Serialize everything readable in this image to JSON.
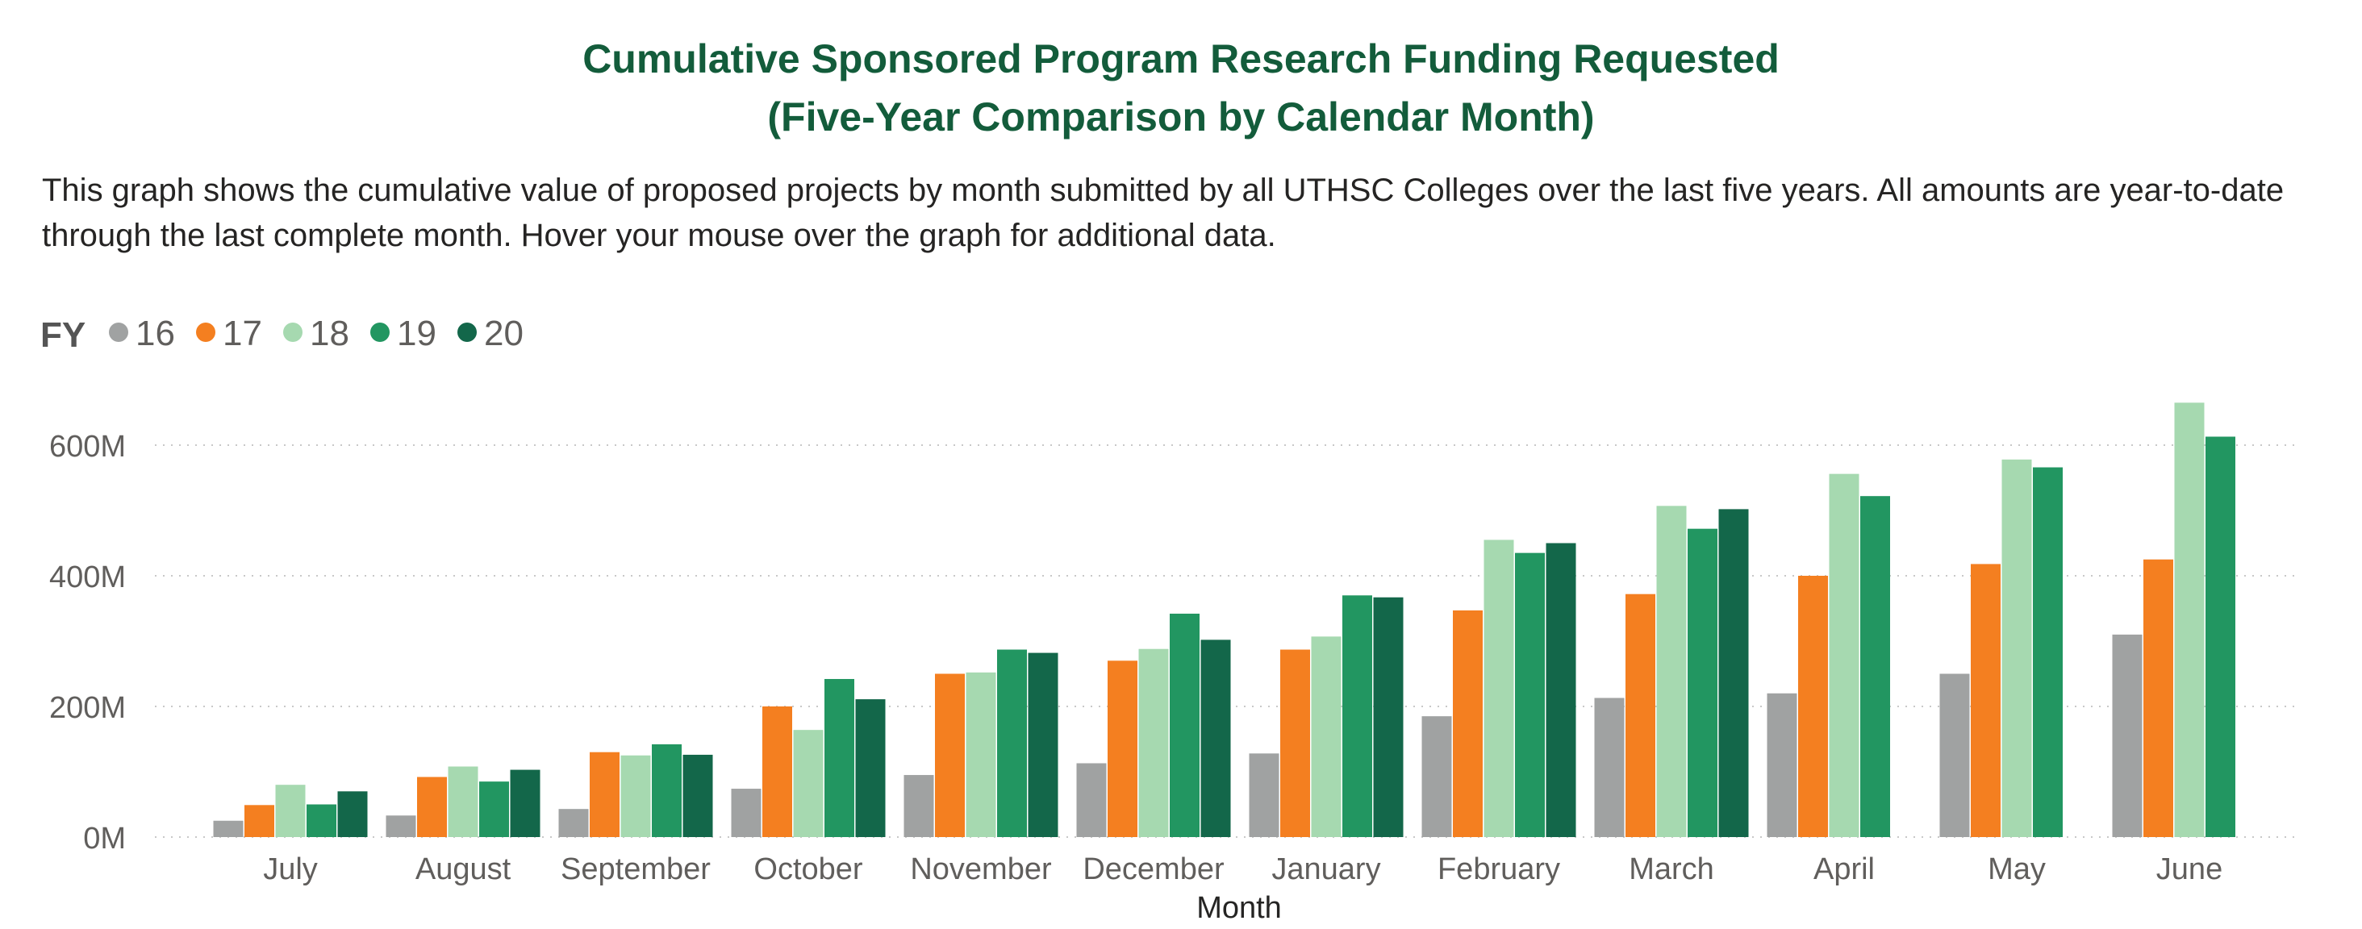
{
  "title_line1": "Cumulative Sponsored Program Research Funding Requested",
  "title_line2": "(Five-Year Comparison by Calendar Month)",
  "description": "This graph shows the cumulative value of proposed projects by month submitted by all UTHSC Colleges over the last five years.  All amounts are year-to-date through the last complete month.  Hover your mouse over the graph for additional data.",
  "chart_data": {
    "type": "bar",
    "legend_title": "FY",
    "legend_position": "top-left",
    "xlabel": "Month",
    "ylabel": "",
    "ylim": [
      0,
      700
    ],
    "unit_suffix": "M",
    "yticks": [
      0,
      200,
      400,
      600
    ],
    "ytick_labels": [
      "0M",
      "200M",
      "400M",
      "600M"
    ],
    "grid": "horizontal-dotted",
    "categories": [
      "July",
      "August",
      "September",
      "October",
      "November",
      "December",
      "January",
      "February",
      "March",
      "April",
      "May",
      "June"
    ],
    "series": [
      {
        "name": "16",
        "color": "#a0a2a2",
        "values": [
          25,
          33,
          43,
          74,
          95,
          113,
          128,
          185,
          213,
          220,
          250,
          310
        ]
      },
      {
        "name": "17",
        "color": "#f47f20",
        "values": [
          49,
          92,
          130,
          200,
          250,
          270,
          287,
          347,
          372,
          400,
          418,
          425
        ]
      },
      {
        "name": "18",
        "color": "#a6d9b0",
        "values": [
          80,
          108,
          125,
          164,
          252,
          288,
          307,
          455,
          507,
          556,
          578,
          665
        ]
      },
      {
        "name": "19",
        "color": "#229661",
        "values": [
          50,
          85,
          142,
          242,
          287,
          342,
          370,
          435,
          472,
          522,
          566,
          613
        ]
      },
      {
        "name": "20",
        "color": "#13674a",
        "values": [
          70,
          103,
          126,
          211,
          282,
          302,
          367,
          450,
          502,
          null,
          null,
          null
        ]
      }
    ]
  }
}
